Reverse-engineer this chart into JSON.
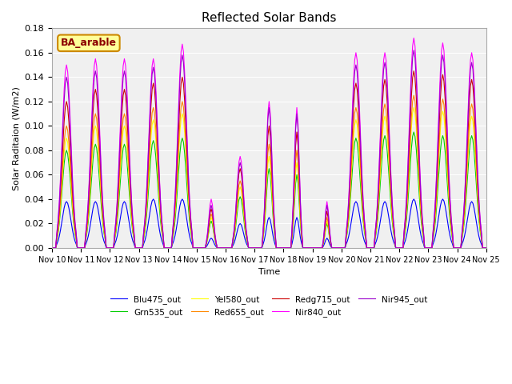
{
  "title": "Reflected Solar Bands",
  "xlabel": "Time",
  "ylabel": "Solar Raditaion (W/m2)",
  "annotation": "BA_arable",
  "xlim_start": 0,
  "xlim_end": 360,
  "ylim": [
    0,
    0.18
  ],
  "yticks": [
    0.0,
    0.02,
    0.04,
    0.06,
    0.08,
    0.1,
    0.12,
    0.14,
    0.16,
    0.18
  ],
  "xtick_labels": [
    "Nov 10",
    "Nov 11",
    "Nov 12",
    "Nov 13",
    "Nov 14",
    "Nov 15",
    "Nov 16",
    "Nov 17",
    "Nov 18",
    "Nov 19",
    "Nov 20",
    "Nov 21",
    "Nov 22",
    "Nov 23",
    "Nov 24",
    "Nov 25"
  ],
  "xtick_positions": [
    0,
    24,
    48,
    72,
    96,
    120,
    144,
    168,
    192,
    216,
    240,
    264,
    288,
    312,
    336,
    360
  ],
  "colors": {
    "Blu475_out": "#0000ff",
    "Grn535_out": "#00cc00",
    "Yel580_out": "#ffff00",
    "Red655_out": "#ff8800",
    "Redg715_out": "#cc0000",
    "Nir840_out": "#ff00ff",
    "Nir945_out": "#9900cc"
  },
  "legend_labels": [
    "Blu475_out",
    "Grn535_out",
    "Yel580_out",
    "Red655_out",
    "Redg715_out",
    "Nir840_out",
    "Nir945_out"
  ],
  "background_color": "#e8e8e8",
  "plot_bg_color": "#f0f0f0",
  "grid_color": "white",
  "annotation_bg": "#ffff99",
  "annotation_border": "#cc8800"
}
